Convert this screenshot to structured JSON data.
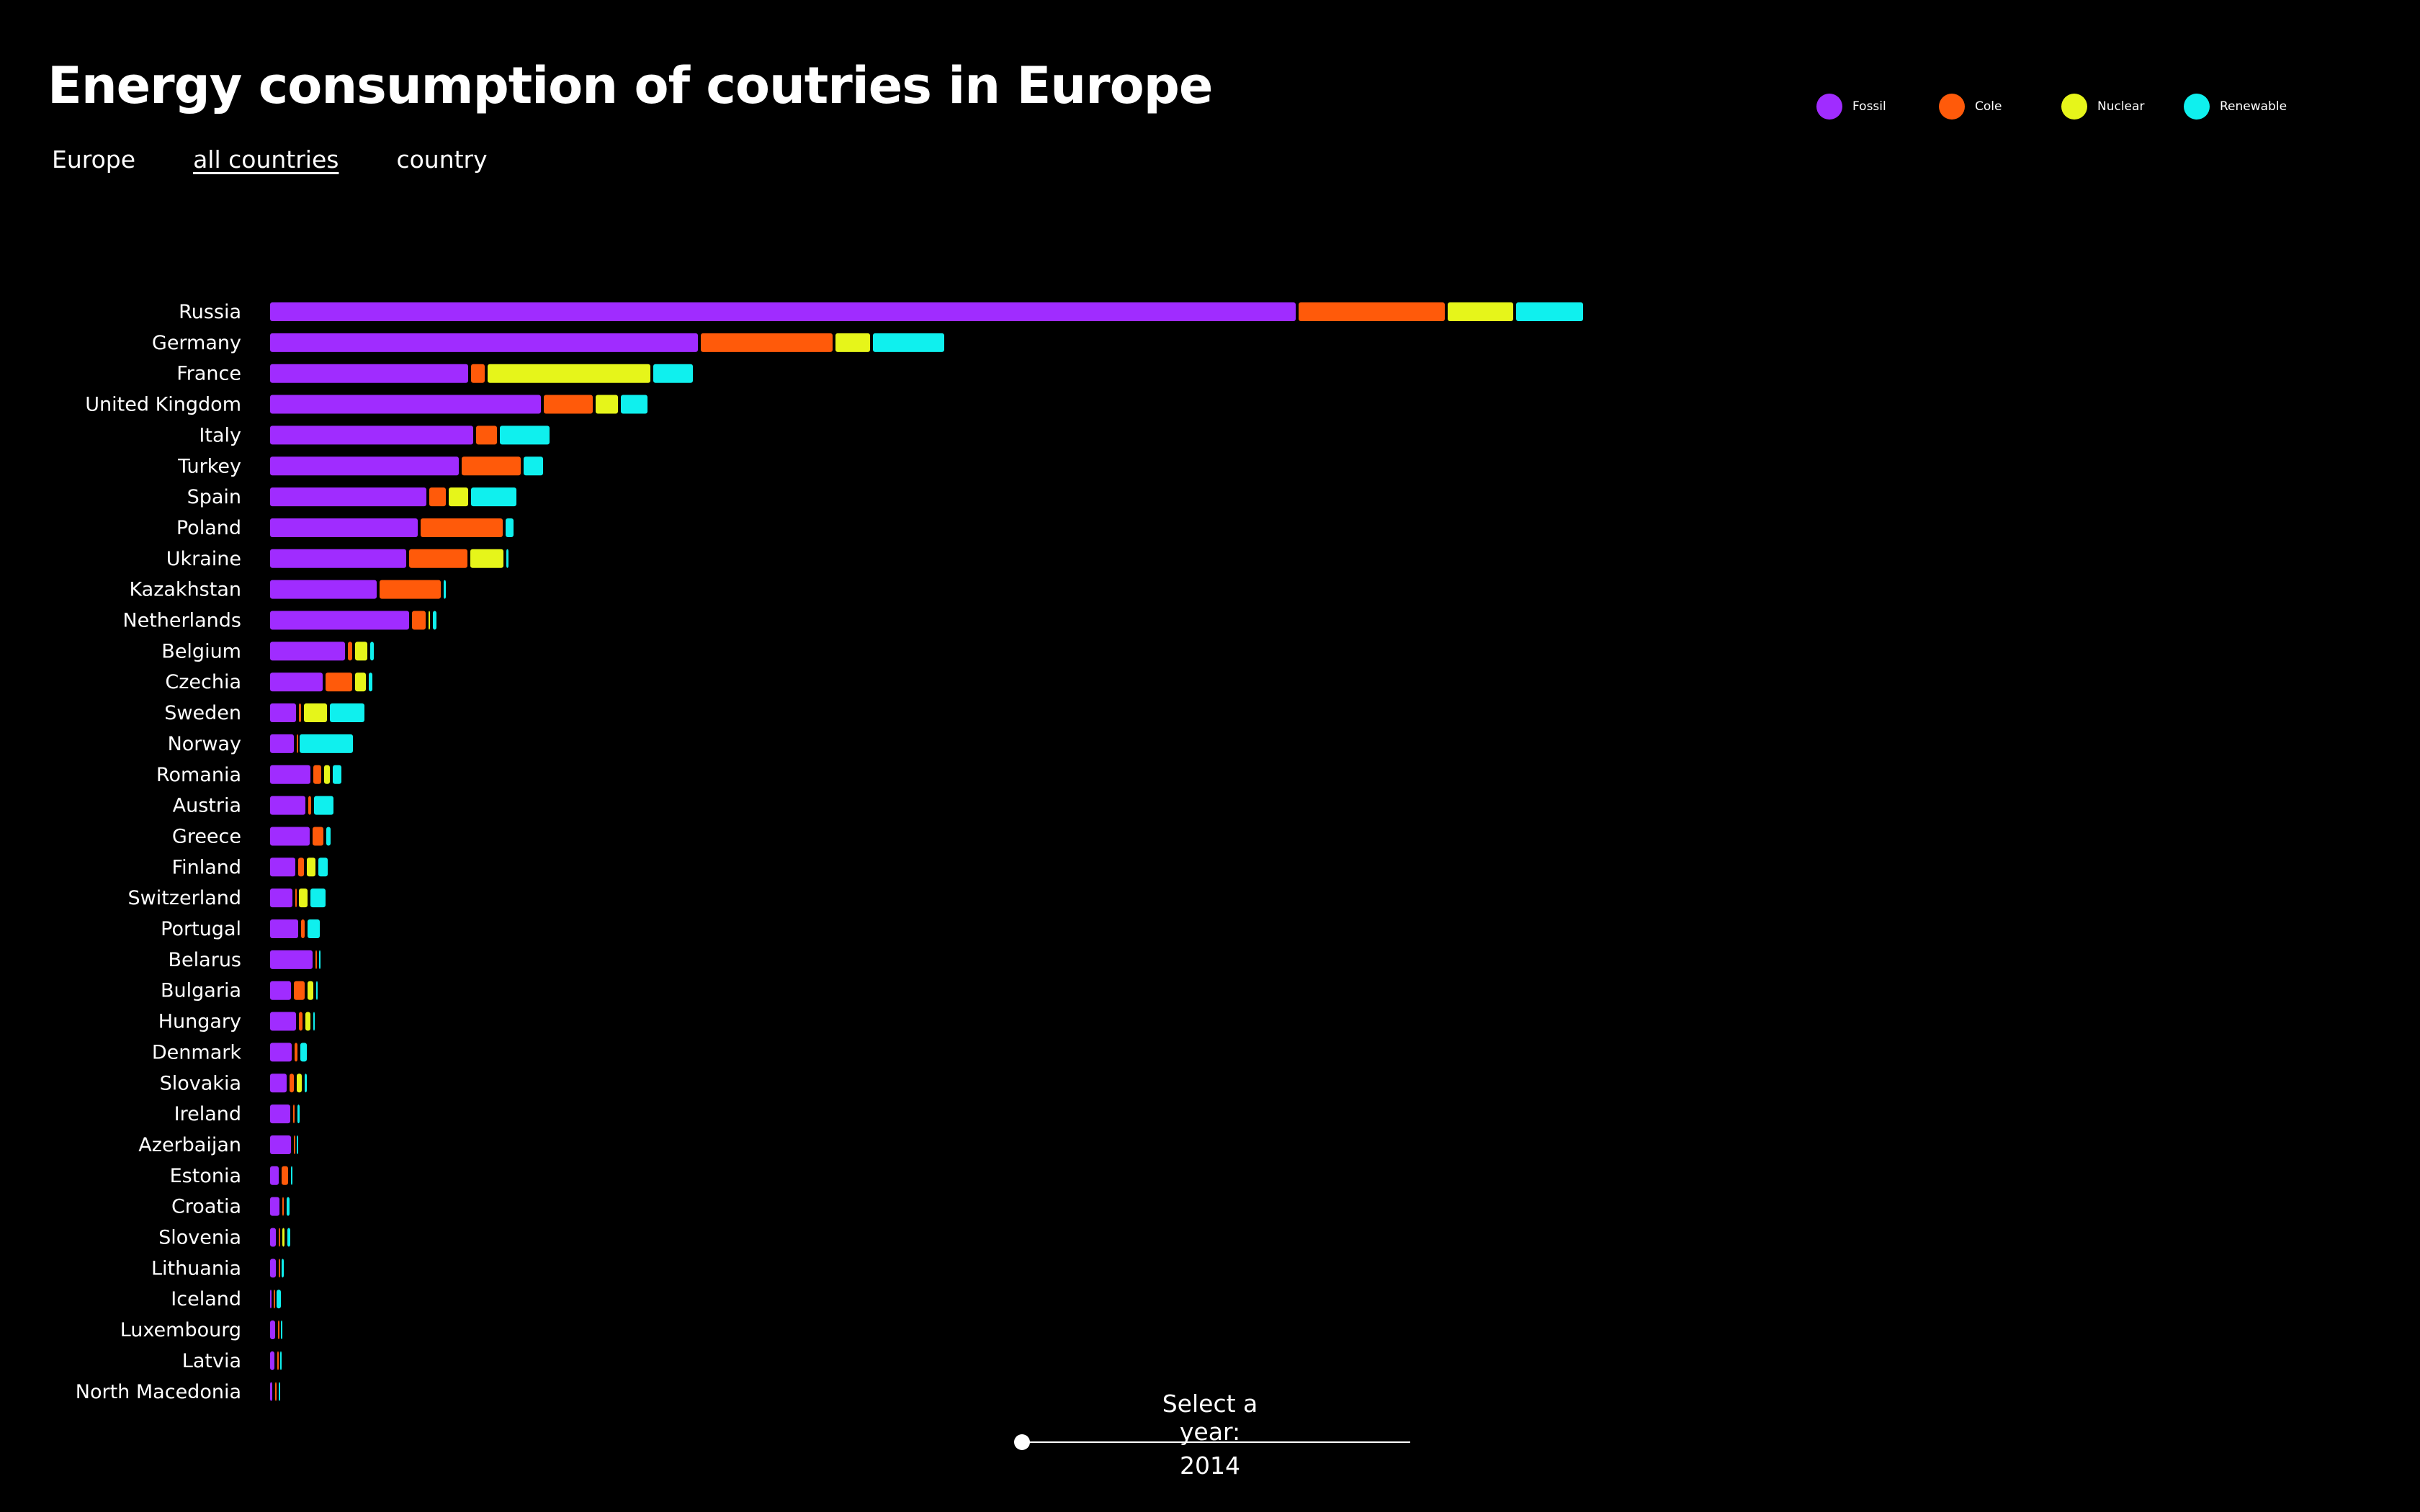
{
  "header": {
    "title": "Energy consumption of coutries in Europe"
  },
  "nav": {
    "items": [
      "Europe",
      "all countries",
      "country"
    ],
    "active": "all countries"
  },
  "legend": [
    {
      "label": "Fossil",
      "color": "#a02cff"
    },
    {
      "label": "Cole",
      "color": "#ff5a0a"
    },
    {
      "label": "Nuclear",
      "color": "#e6f51a"
    },
    {
      "label": "Renewable",
      "color": "#0ff0ee"
    }
  ],
  "year_selector": {
    "label": "Select a year:",
    "value": "2014",
    "position": 0.0
  },
  "chart_data": {
    "type": "bar",
    "orientation": "horizontal",
    "stacked": true,
    "xlim": [
      0,
      1830
    ],
    "categories": [
      "Russia",
      "Germany",
      "France",
      "United Kingdom",
      "Italy",
      "Turkey",
      "Spain",
      "Poland",
      "Ukraine",
      "Kazakhstan",
      "Netherlands",
      "Belgium",
      "Czechia",
      "Sweden",
      "Norway",
      "Romania",
      "Austria",
      "Greece",
      "Finland",
      "Switzerland",
      "Portugal",
      "Belarus",
      "Bulgaria",
      "Hungary",
      "Denmark",
      "Slovakia",
      "Ireland",
      "Azerbaijan",
      "Estonia",
      "Croatia",
      "Slovenia",
      "Lithuania",
      "Iceland",
      "Luxembourg",
      "Latvia",
      "North Macedonia"
    ],
    "series": [
      {
        "name": "Fossil",
        "color": "#a02cff",
        "values": [
          1425,
          595,
          276,
          377,
          283,
          263,
          218,
          206,
          190,
          149,
          194,
          105,
          74,
          37,
          34,
          57,
          50,
          56,
          36,
          32,
          40,
          60,
          30,
          37,
          31,
          24,
          29,
          30,
          13,
          14,
          9,
          9,
          2,
          8,
          7,
          4
        ]
      },
      {
        "name": "Cole",
        "color": "#ff5a0a",
        "values": [
          204,
          184,
          20,
          69,
          30,
          83,
          24,
          115,
          82,
          86,
          20,
          7,
          38,
          4,
          1,
          12,
          5,
          16,
          9,
          2,
          6,
          2,
          16,
          6,
          5,
          7,
          3,
          1,
          10,
          3,
          2,
          1,
          1,
          1,
          1,
          2
        ]
      },
      {
        "name": "Nuclear",
        "color": "#e6f51a",
        "values": [
          92,
          49,
          227,
          32,
          0,
          0,
          28,
          0,
          47,
          0,
          3,
          18,
          16,
          33,
          0,
          9,
          0,
          0,
          13,
          13,
          0,
          0,
          9,
          8,
          0,
          8,
          0,
          0,
          0,
          0,
          4,
          0,
          0,
          0,
          0,
          0
        ]
      },
      {
        "name": "Renewable",
        "color": "#0ff0ee",
        "values": [
          94,
          100,
          56,
          38,
          70,
          28,
          64,
          12,
          4,
          4,
          6,
          6,
          6,
          49,
          75,
          13,
          28,
          7,
          14,
          22,
          18,
          3,
          3,
          3,
          10,
          4,
          4,
          2,
          2,
          5,
          5,
          4,
          7,
          3,
          3,
          3
        ]
      }
    ]
  }
}
